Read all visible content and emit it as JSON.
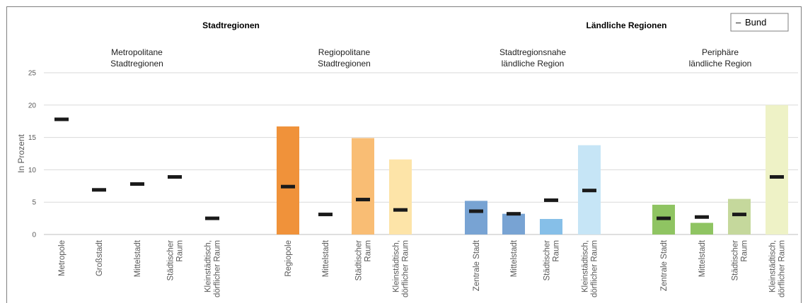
{
  "chart_data": {
    "type": "bar",
    "ylabel": "In Prozent",
    "ylim": [
      0,
      25
    ],
    "yticks": [
      0,
      5,
      10,
      15,
      20,
      25
    ],
    "grid": true,
    "legend": {
      "position": "top-right",
      "label": "Bund",
      "symbol": "–"
    },
    "region_groups": [
      {
        "title": "Stadtregionen",
        "start": 0,
        "end": 8
      },
      {
        "title": "Ländliche Regionen",
        "start": 9,
        "end": 16
      }
    ],
    "subgroups": [
      {
        "title": [
          "Metropolitane",
          "Stadtregionen"
        ],
        "start": 0,
        "end": 4
      },
      {
        "title": [
          "Regiopolitane",
          "Stadtregionen"
        ],
        "start": 5,
        "end": 8
      },
      {
        "title": [
          "Stadtregionsnahe",
          "ländliche Region"
        ],
        "start": 9,
        "end": 12
      },
      {
        "title": [
          "Periphäre",
          "ländliche Region"
        ],
        "start": 13,
        "end": 16
      }
    ],
    "categories": [
      [
        "Metropole"
      ],
      [
        "Großstadt"
      ],
      [
        "Mittelstadt"
      ],
      [
        "Städtischer",
        "Raum"
      ],
      [
        "Kleinstädtisch,",
        "dörflicher Raum"
      ],
      [
        "Regiopole"
      ],
      [
        "Mittelstadt"
      ],
      [
        "Städtischer",
        "Raum"
      ],
      [
        "Kleinstädtisch,",
        "dörflicher Raum"
      ],
      [
        "Zentrale Stadt"
      ],
      [
        "Mittelstadt"
      ],
      [
        "Städtischer",
        "Raum"
      ],
      [
        "Kleinstädtisch,",
        "dörflicher Raum"
      ],
      [
        "Zentrale Stadt"
      ],
      [
        "Mittelstadt"
      ],
      [
        "Städtischer",
        "Raum"
      ],
      [
        "Kleinstädtisch,",
        "dörflicher Raum"
      ]
    ],
    "values": [
      null,
      null,
      null,
      null,
      null,
      16.7,
      0,
      14.9,
      11.6,
      5.2,
      3.2,
      2.4,
      13.8,
      4.6,
      1.8,
      5.5,
      20.0
    ],
    "bund": [
      17.8,
      6.9,
      7.8,
      8.9,
      2.5,
      7.4,
      3.1,
      5.4,
      3.8,
      3.6,
      3.2,
      5.3,
      6.8,
      2.5,
      2.7,
      3.1,
      8.9
    ],
    "colors": [
      "#ffffff",
      "#ffffff",
      "#ffffff",
      "#ffffff",
      "#ffffff",
      "#f0923a",
      "#f0923a",
      "#f9bd74",
      "#fde4a8",
      "#78a3d3",
      "#78a3d3",
      "#86bfe8",
      "#c6e5f6",
      "#8fc462",
      "#8fc462",
      "#c5d89c",
      "#eef2c6"
    ],
    "bund_color": "#1a1a1a"
  }
}
